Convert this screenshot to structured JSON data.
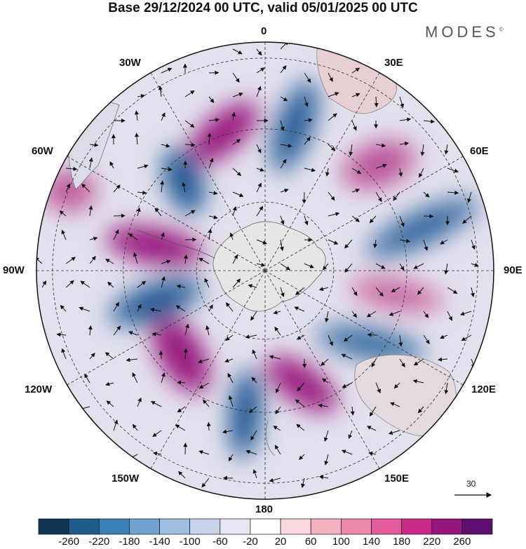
{
  "header": {
    "title": "Base 29/12/2024 00 UTC, valid 05/01/2025 00 UTC",
    "brand": "MODES",
    "brand_mark": "©"
  },
  "map": {
    "projection": "south-polar-stereographic",
    "longitude_labels": {
      "lon_0": "0",
      "lon_30e": "30E",
      "lon_60e": "60E",
      "lon_90e": "90E",
      "lon_120e": "120E",
      "lon_150e": "150E",
      "lon_180": "180",
      "lon_150w": "150W",
      "lon_120w": "120W",
      "lon_90w": "90W",
      "lon_60w": "60W",
      "lon_30w": "30W"
    },
    "reference_vector": "30",
    "anomaly_centers": [
      {
        "sign": "positive",
        "strength": 230
      },
      {
        "sign": "negative",
        "strength": 180
      },
      {
        "sign": "positive",
        "strength": 120
      },
      {
        "sign": "negative",
        "strength": 160
      },
      {
        "sign": "positive",
        "strength": 90
      },
      {
        "sign": "negative",
        "strength": 150
      },
      {
        "sign": "positive",
        "strength": 220
      },
      {
        "sign": "negative",
        "strength": 200
      },
      {
        "sign": "positive",
        "strength": 240
      },
      {
        "sign": "negative",
        "strength": 190
      },
      {
        "sign": "positive",
        "strength": 240
      },
      {
        "sign": "negative",
        "strength": 200
      },
      {
        "sign": "positive",
        "strength": 110
      }
    ]
  },
  "colorbar": {
    "colors": [
      "#0f3550",
      "#1f5d8c",
      "#3a7fb5",
      "#6ea3cf",
      "#9fbfe0",
      "#c9d4ea",
      "#e8e6f2",
      "#ffffff",
      "#f9d9dd",
      "#f4b2c1",
      "#ee88ab",
      "#e25c9c",
      "#c92a8a",
      "#96157a",
      "#5e0e6e"
    ],
    "labels": [
      "-260",
      "-220",
      "-180",
      "-140",
      "-100",
      "-60",
      "-20",
      "20",
      "60",
      "100",
      "140",
      "180",
      "220",
      "260"
    ]
  }
}
